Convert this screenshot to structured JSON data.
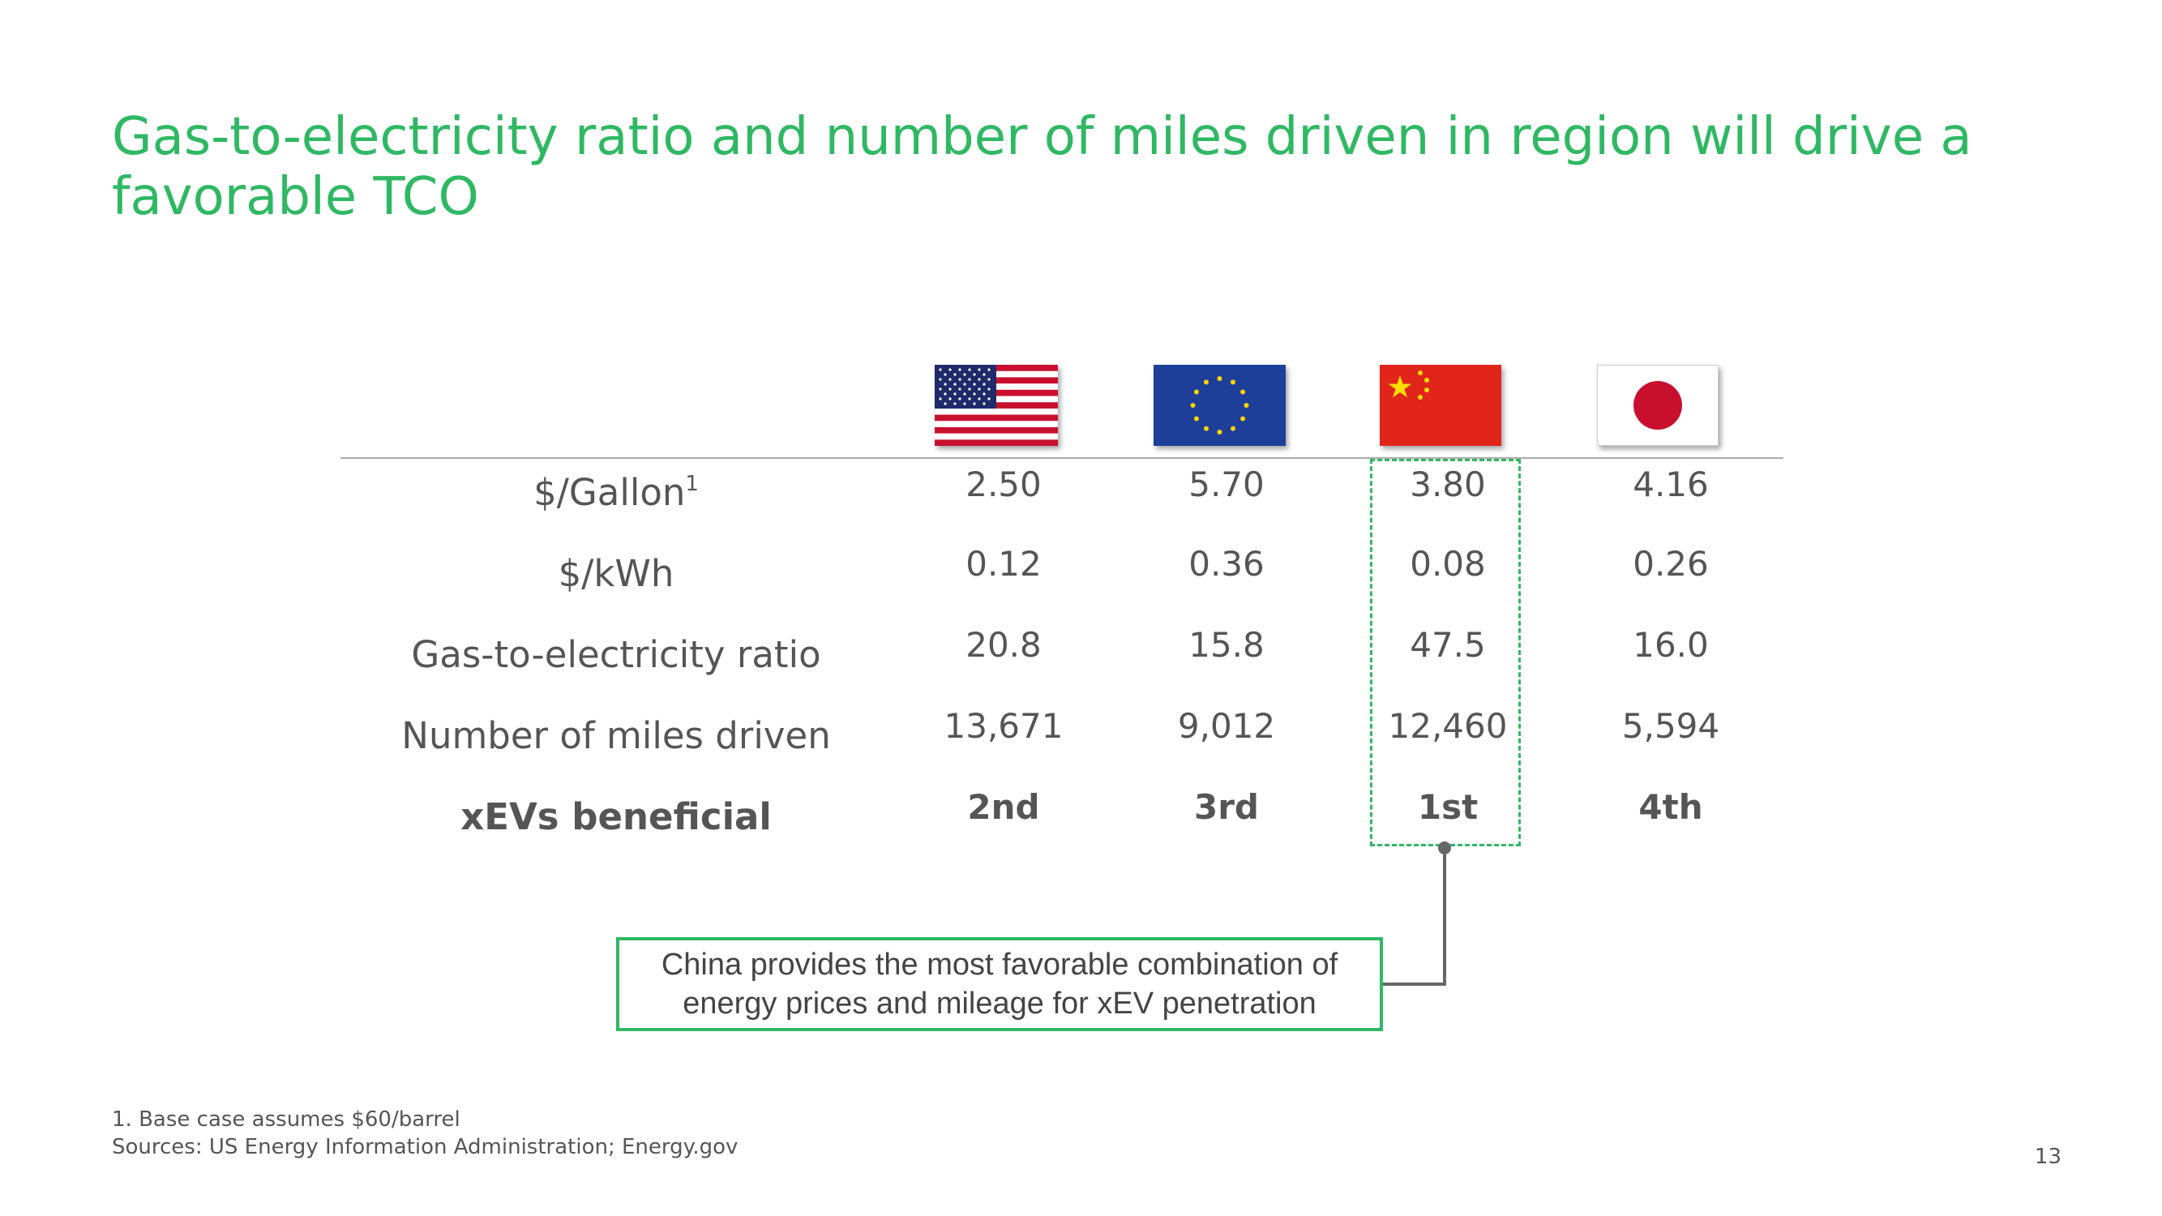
{
  "slide": {
    "title": "Gas-to-electricity ratio and number of miles driven in region will drive a favorable TCO",
    "page_number": "13"
  },
  "flags": [
    {
      "region": "US",
      "icon": "us-flag-icon"
    },
    {
      "region": "EU",
      "icon": "eu-flag-icon"
    },
    {
      "region": "China",
      "icon": "china-flag-icon"
    },
    {
      "region": "Japan",
      "icon": "japan-flag-icon"
    }
  ],
  "table": {
    "rows": [
      {
        "label": "$/Gallon",
        "sup": "1",
        "values": [
          "2.50",
          "5.70",
          "3.80",
          "4.16"
        ]
      },
      {
        "label": "$/kWh",
        "values": [
          "0.12",
          "0.36",
          "0.08",
          "0.26"
        ]
      },
      {
        "label": "Gas-to-electricity ratio",
        "values": [
          "20.8",
          "15.8",
          "47.5",
          "16.0"
        ]
      },
      {
        "label": "Number of miles driven",
        "values": [
          "13,671",
          "9,012",
          "12,460",
          "5,594"
        ]
      },
      {
        "label": "xEVs beneficial",
        "values": [
          "2nd",
          "3rd",
          "1st",
          "4th"
        ]
      }
    ]
  },
  "callout": {
    "line1": "China provides the most favorable combination of",
    "line2": "energy prices and mileage for xEV penetration"
  },
  "footnotes": {
    "note1": "1. Base case assumes $60/barrel",
    "sources": "Sources: US Energy Information Administration; Energy.gov"
  },
  "colors": {
    "accent": "#2fb863",
    "text": "#555555"
  }
}
